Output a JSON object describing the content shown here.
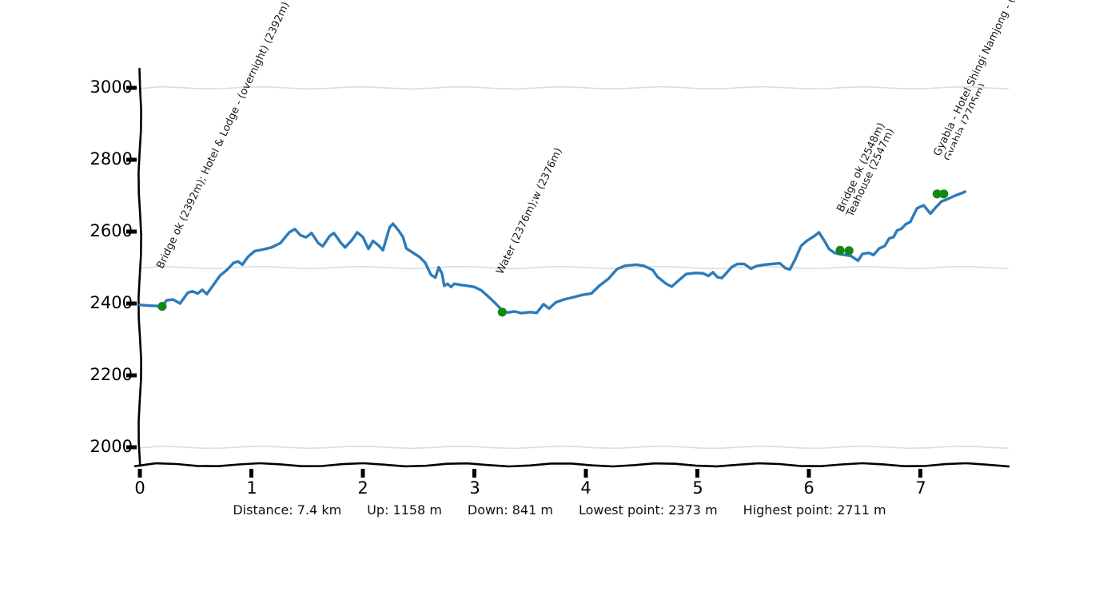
{
  "colors": {
    "line": "#2b7bba",
    "dot": "#128912",
    "grid": "#dcdcdc",
    "axis": "#000000",
    "label": "#1a1a1a"
  },
  "chart_data": {
    "type": "line",
    "x_unit": "km",
    "y_unit": "m",
    "xlim": [
      0,
      7.8
    ],
    "ylim": [
      1950,
      3060
    ],
    "grid": "horizontal-every-500m",
    "legend": "none",
    "xticks": [
      0,
      1,
      2,
      3,
      4,
      5,
      6,
      7
    ],
    "yticks": [
      2000,
      2200,
      2400,
      2600,
      2800,
      3000
    ],
    "gridlines_y": [
      2000,
      2500,
      3000
    ],
    "series": [
      {
        "name": "elevation-profile",
        "points": [
          [
            0,
            2396
          ],
          [
            0.08,
            2394
          ],
          [
            0.15,
            2393
          ],
          [
            0.2,
            2392
          ],
          [
            0.24,
            2409
          ],
          [
            0.3,
            2411
          ],
          [
            0.36,
            2400
          ],
          [
            0.43,
            2430
          ],
          [
            0.47,
            2434
          ],
          [
            0.52,
            2428
          ],
          [
            0.56,
            2438
          ],
          [
            0.6,
            2426
          ],
          [
            0.66,
            2452
          ],
          [
            0.72,
            2478
          ],
          [
            0.78,
            2493
          ],
          [
            0.84,
            2513
          ],
          [
            0.88,
            2517
          ],
          [
            0.92,
            2508
          ],
          [
            0.97,
            2530
          ],
          [
            1.03,
            2546
          ],
          [
            1.1,
            2550
          ],
          [
            1.18,
            2556
          ],
          [
            1.26,
            2568
          ],
          [
            1.34,
            2598
          ],
          [
            1.39,
            2607
          ],
          [
            1.44,
            2590
          ],
          [
            1.49,
            2584
          ],
          [
            1.54,
            2596
          ],
          [
            1.6,
            2568
          ],
          [
            1.64,
            2559
          ],
          [
            1.7,
            2587
          ],
          [
            1.74,
            2596
          ],
          [
            1.8,
            2570
          ],
          [
            1.84,
            2556
          ],
          [
            1.9,
            2576
          ],
          [
            1.95,
            2598
          ],
          [
            2,
            2585
          ],
          [
            2.05,
            2552
          ],
          [
            2.09,
            2574
          ],
          [
            2.14,
            2562
          ],
          [
            2.18,
            2548
          ],
          [
            2.24,
            2612
          ],
          [
            2.27,
            2622
          ],
          [
            2.32,
            2603
          ],
          [
            2.36,
            2585
          ],
          [
            2.39,
            2553
          ],
          [
            2.45,
            2541
          ],
          [
            2.51,
            2529
          ],
          [
            2.56,
            2513
          ],
          [
            2.61,
            2480
          ],
          [
            2.65,
            2472
          ],
          [
            2.68,
            2501
          ],
          [
            2.71,
            2483
          ],
          [
            2.73,
            2449
          ],
          [
            2.76,
            2455
          ],
          [
            2.79,
            2446
          ],
          [
            2.82,
            2455
          ],
          [
            2.87,
            2452
          ],
          [
            2.94,
            2449
          ],
          [
            3,
            2446
          ],
          [
            3.06,
            2437
          ],
          [
            3.12,
            2421
          ],
          [
            3.18,
            2403
          ],
          [
            3.25,
            2381
          ],
          [
            3.3,
            2375
          ],
          [
            3.36,
            2378
          ],
          [
            3.42,
            2373
          ],
          [
            3.5,
            2376
          ],
          [
            3.56,
            2374
          ],
          [
            3.62,
            2398
          ],
          [
            3.67,
            2386
          ],
          [
            3.73,
            2403
          ],
          [
            3.8,
            2411
          ],
          [
            3.88,
            2417
          ],
          [
            3.97,
            2424
          ],
          [
            4.05,
            2428
          ],
          [
            4.12,
            2449
          ],
          [
            4.2,
            2468
          ],
          [
            4.28,
            2496
          ],
          [
            4.35,
            2505
          ],
          [
            4.45,
            2508
          ],
          [
            4.52,
            2505
          ],
          [
            4.6,
            2493
          ],
          [
            4.64,
            2475
          ],
          [
            4.72,
            2455
          ],
          [
            4.77,
            2447
          ],
          [
            4.82,
            2461
          ],
          [
            4.9,
            2482
          ],
          [
            4.98,
            2485
          ],
          [
            5.05,
            2484
          ],
          [
            5.1,
            2477
          ],
          [
            5.14,
            2487
          ],
          [
            5.18,
            2473
          ],
          [
            5.22,
            2471
          ],
          [
            5.31,
            2502
          ],
          [
            5.36,
            2510
          ],
          [
            5.42,
            2510
          ],
          [
            5.48,
            2497
          ],
          [
            5.53,
            2504
          ],
          [
            5.6,
            2508
          ],
          [
            5.67,
            2510
          ],
          [
            5.74,
            2512
          ],
          [
            5.79,
            2498
          ],
          [
            5.83,
            2495
          ],
          [
            5.88,
            2525
          ],
          [
            5.93,
            2560
          ],
          [
            5.98,
            2574
          ],
          [
            6.05,
            2588
          ],
          [
            6.09,
            2598
          ],
          [
            6.14,
            2574
          ],
          [
            6.18,
            2552
          ],
          [
            6.23,
            2541
          ],
          [
            6.28,
            2537
          ],
          [
            6.33,
            2535
          ],
          [
            6.38,
            2532
          ],
          [
            6.44,
            2519
          ],
          [
            6.48,
            2538
          ],
          [
            6.54,
            2541
          ],
          [
            6.58,
            2535
          ],
          [
            6.63,
            2553
          ],
          [
            6.68,
            2560
          ],
          [
            6.72,
            2581
          ],
          [
            6.76,
            2585
          ],
          [
            6.79,
            2603
          ],
          [
            6.83,
            2608
          ],
          [
            6.87,
            2621
          ],
          [
            6.91,
            2627
          ],
          [
            6.97,
            2665
          ],
          [
            7.03,
            2673
          ],
          [
            7.09,
            2650
          ],
          [
            7.14,
            2668
          ],
          [
            7.19,
            2684
          ],
          [
            7.24,
            2690
          ],
          [
            7.31,
            2700
          ],
          [
            7.38,
            2708
          ],
          [
            7.4,
            2711
          ]
        ]
      }
    ],
    "waypoints": [
      {
        "km": 0.2,
        "elevation": 2392,
        "label_lines": [
          "Bridge ok (2392m); Hotel & Lodge - (overnight) (2392m)"
        ],
        "dots": [
          [
            0.2,
            2392
          ]
        ]
      },
      {
        "km": 3.25,
        "elevation": 2376,
        "label_lines": [
          "Water (2376m);w (2376m)"
        ],
        "dots": [
          [
            3.25,
            2376
          ]
        ]
      },
      {
        "km": 6.3,
        "elevation": 2548,
        "label_lines": [
          "Bridge ok (2548m)",
          "Teahouse (2547m)"
        ],
        "dots": [
          [
            6.28,
            2548
          ],
          [
            6.36,
            2547
          ]
        ]
      },
      {
        "km": 7.17,
        "elevation": 2705,
        "label_lines": [
          "Gyabla - Hotel Shingi Namjong - (",
          "Gyabla (2705m)"
        ],
        "second_line_clipped": true,
        "dots": [
          [
            7.15,
            2705
          ],
          [
            7.21,
            2705
          ]
        ]
      }
    ]
  },
  "stats": {
    "distance": "Distance: 7.4 km",
    "up": "Up: 1158 m",
    "down": "Down: 841 m",
    "lowest": "Lowest point: 2373 m",
    "highest": "Highest point: 2711 m"
  }
}
